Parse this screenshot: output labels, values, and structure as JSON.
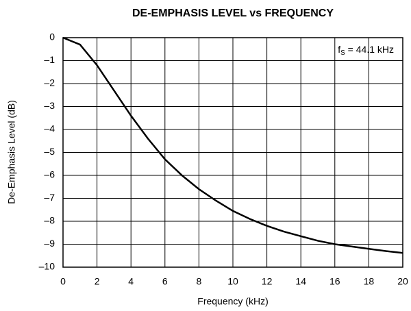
{
  "chart_data": {
    "type": "line",
    "title": "DE-EMPHASIS LEVEL vs FREQUENCY",
    "xlabel": "Frequency (kHz)",
    "ylabel": "De-Emphasis Level (dB)",
    "annotation": {
      "main": "f",
      "sub": "S",
      "rest": " = 44.1 kHz"
    },
    "x": [
      0,
      1,
      2,
      3,
      4,
      5,
      6,
      7,
      8,
      9,
      10,
      11,
      12,
      13,
      14,
      15,
      16,
      17,
      18,
      19,
      20
    ],
    "series": [
      {
        "color": "#000000",
        "values": [
          0,
          -0.3,
          -1.2,
          -2.3,
          -3.4,
          -4.4,
          -5.3,
          -6.0,
          -6.6,
          -7.1,
          -7.55,
          -7.9,
          -8.2,
          -8.45,
          -8.65,
          -8.85,
          -9.0,
          -9.1,
          -9.2,
          -9.3,
          -9.38
        ]
      }
    ],
    "xlim": [
      0,
      20
    ],
    "xticks": [
      0,
      2,
      4,
      6,
      8,
      10,
      12,
      14,
      16,
      18,
      20
    ],
    "ylim": [
      -10,
      0
    ],
    "yticks": [
      {
        "value": -10,
        "label": "–10"
      },
      {
        "value": -9,
        "label": "–9"
      },
      {
        "value": -8,
        "label": "–8"
      },
      {
        "value": -7,
        "label": "–7"
      },
      {
        "value": -6,
        "label": "–6"
      },
      {
        "value": -5,
        "label": "–5"
      },
      {
        "value": -4,
        "label": "–4"
      },
      {
        "value": -3,
        "label": "–3"
      },
      {
        "value": -2,
        "label": "–2"
      },
      {
        "value": -1,
        "label": "–1"
      },
      0
    ],
    "grid": true
  }
}
